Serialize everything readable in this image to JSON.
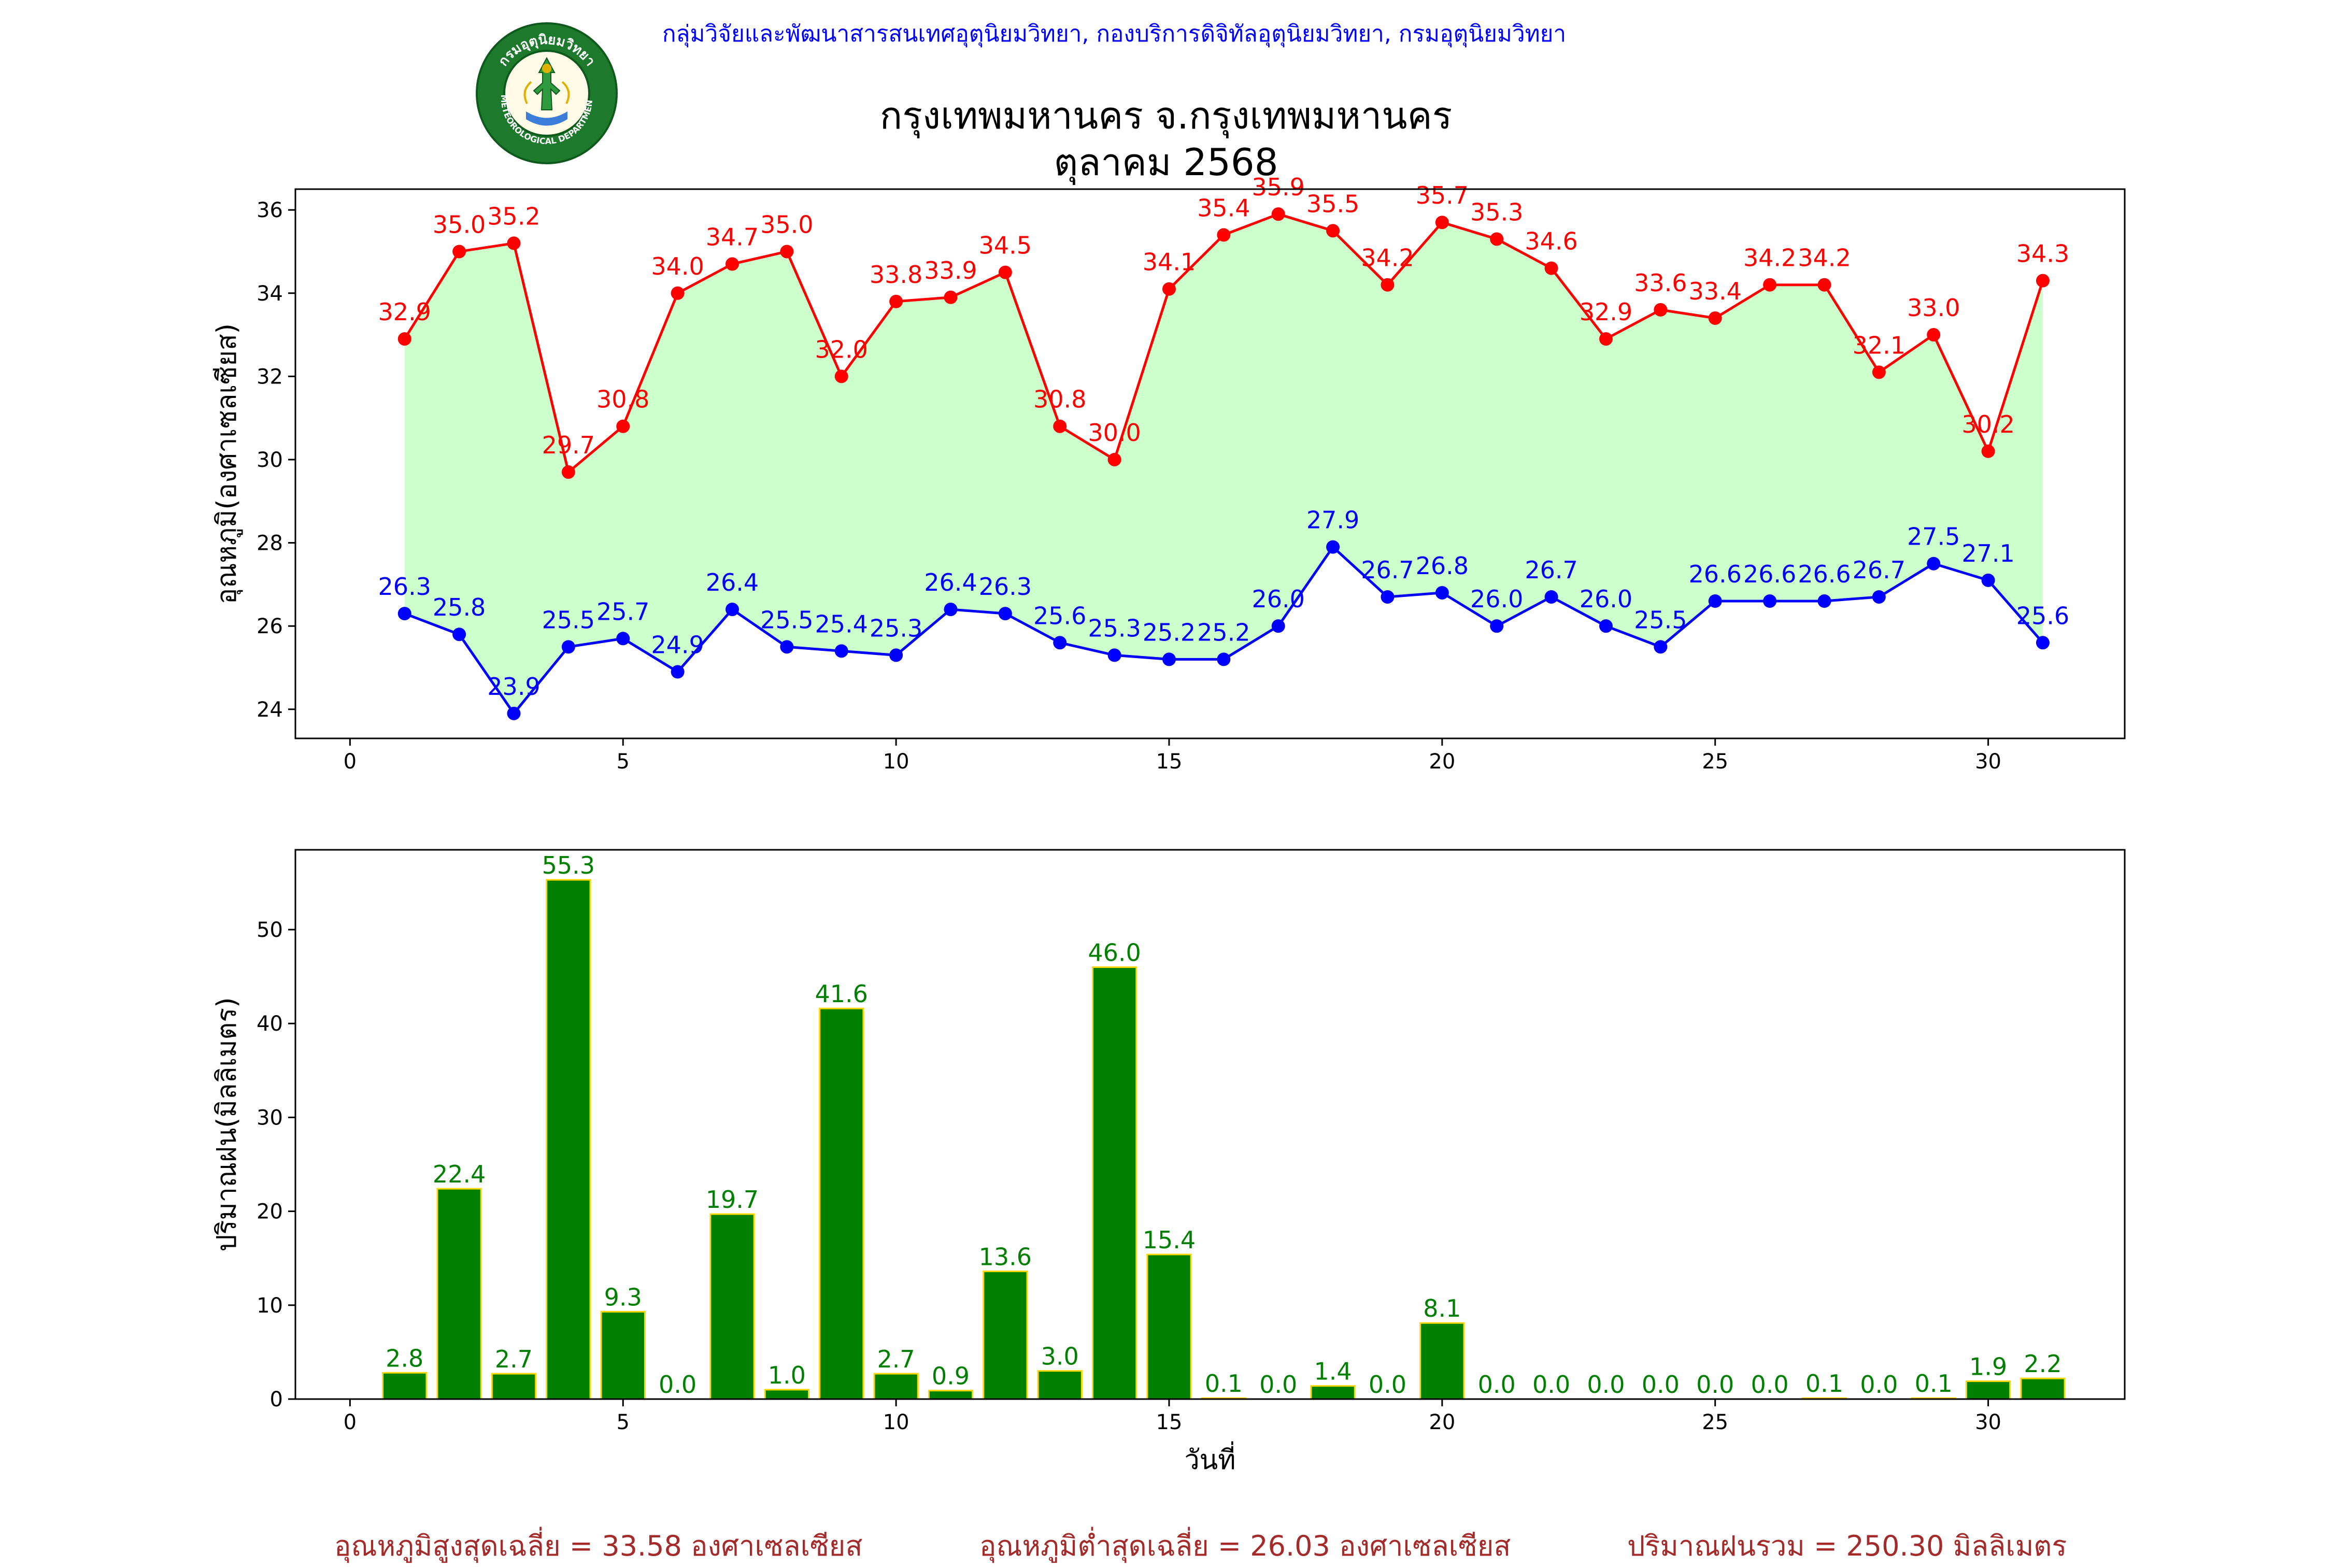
{
  "header": {
    "agency": "กลุ่มวิจัยและพัฒนาสารสนเทศอุตุนิยมวิทยา, กองบริการดิจิทัลอุตุนิยมวิทยา, กรมอุตุนิยมวิทยา",
    "title_line1": "กรุงเทพมหานคร จ.กรุงเทพมหานคร",
    "title_line2": "ตุลาคม 2568",
    "logo_text_top": "กรมอุตุนิยมวิทยา",
    "logo_text_bottom": "METEOROLOGICAL DEPARTMENT"
  },
  "summary": {
    "max_avg": "อุณหภูมิสูงสุดเฉลี่ย = 33.58 องศาเซลเซียส",
    "min_avg": "อุณหภูมิต่ำสุดเฉลี่ย = 26.03 องศาเซลเซียส",
    "rain_total": "ปริมาณฝนรวม = 250.30 มิลลิเมตร"
  },
  "colors": {
    "max_line": "#ff0000",
    "min_line": "#0000ff",
    "fill": "#ccffcc",
    "bar_fill": "#008000",
    "bar_edge": "#ffd700",
    "bar_label": "#008000",
    "summary": "#a52a2a"
  },
  "chart_data": [
    {
      "type": "line",
      "ylabel": "อุณหภูมิ(องศาเซลเซียส)",
      "xlabel": "",
      "xlim": [
        -1,
        32.5
      ],
      "ylim": [
        23.3,
        36.5
      ],
      "xticks": [
        0,
        5,
        10,
        15,
        20,
        25,
        30
      ],
      "yticks": [
        24,
        26,
        28,
        30,
        32,
        34,
        36
      ],
      "grid": false,
      "fill_between": true,
      "x": [
        1,
        2,
        3,
        4,
        5,
        6,
        7,
        8,
        9,
        10,
        11,
        12,
        13,
        14,
        15,
        16,
        17,
        18,
        19,
        20,
        21,
        22,
        23,
        24,
        25,
        26,
        27,
        28,
        29,
        30,
        31
      ],
      "series": [
        {
          "key": "max",
          "values": [
            32.9,
            35.0,
            35.2,
            29.7,
            30.8,
            34.0,
            34.7,
            35.0,
            32.0,
            33.8,
            33.9,
            34.5,
            30.8,
            30.0,
            34.1,
            35.4,
            35.9,
            35.5,
            34.2,
            35.7,
            35.3,
            34.6,
            32.9,
            33.6,
            33.4,
            34.2,
            34.2,
            32.1,
            33.0,
            30.2,
            34.3
          ]
        },
        {
          "key": "min",
          "values": [
            26.3,
            25.8,
            23.9,
            25.5,
            25.7,
            24.9,
            26.4,
            25.5,
            25.4,
            25.3,
            26.4,
            26.3,
            25.6,
            25.3,
            25.2,
            25.2,
            26.0,
            27.9,
            26.7,
            26.8,
            26.0,
            26.7,
            26.0,
            25.5,
            26.6,
            26.6,
            26.6,
            26.7,
            27.5,
            27.1,
            25.6
          ]
        }
      ]
    },
    {
      "type": "bar",
      "ylabel": "ปริมาณฝน(มิลลิเมตร)",
      "xlabel": "วันที่",
      "xlim": [
        -1,
        32.5
      ],
      "ylim": [
        0,
        58.5
      ],
      "xticks": [
        0,
        5,
        10,
        15,
        20,
        25,
        30
      ],
      "yticks": [
        0,
        10,
        20,
        30,
        40,
        50
      ],
      "grid": false,
      "x": [
        1,
        2,
        3,
        4,
        5,
        6,
        7,
        8,
        9,
        10,
        11,
        12,
        13,
        14,
        15,
        16,
        17,
        18,
        19,
        20,
        21,
        22,
        23,
        24,
        25,
        26,
        27,
        28,
        29,
        30,
        31
      ],
      "values": [
        2.8,
        22.4,
        2.7,
        55.3,
        9.3,
        0.0,
        19.7,
        1.0,
        41.6,
        2.7,
        0.9,
        13.6,
        3.0,
        46.0,
        15.4,
        0.1,
        0.0,
        1.4,
        0.0,
        8.1,
        0.0,
        0.0,
        0.0,
        0.0,
        0.0,
        0.0,
        0.1,
        0.0,
        0.1,
        1.9,
        2.2
      ]
    }
  ]
}
